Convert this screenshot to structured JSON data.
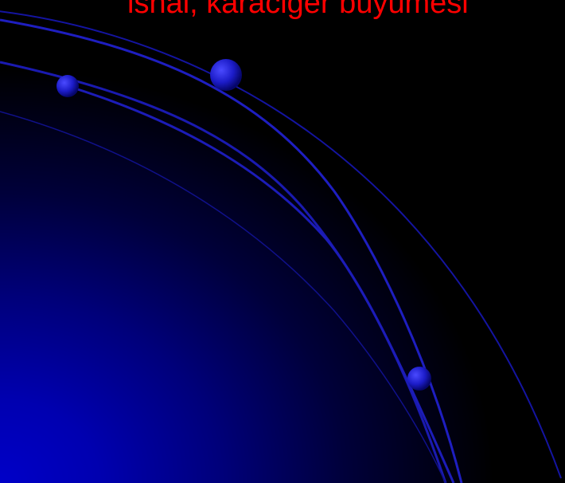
{
  "slide": {
    "title_fragment": "ishal, karaciğer büyümesi",
    "colors": {
      "background": "#000000",
      "gradient": "#0000c8",
      "arc": "#1a1ab8",
      "title": "#ff0000"
    }
  }
}
